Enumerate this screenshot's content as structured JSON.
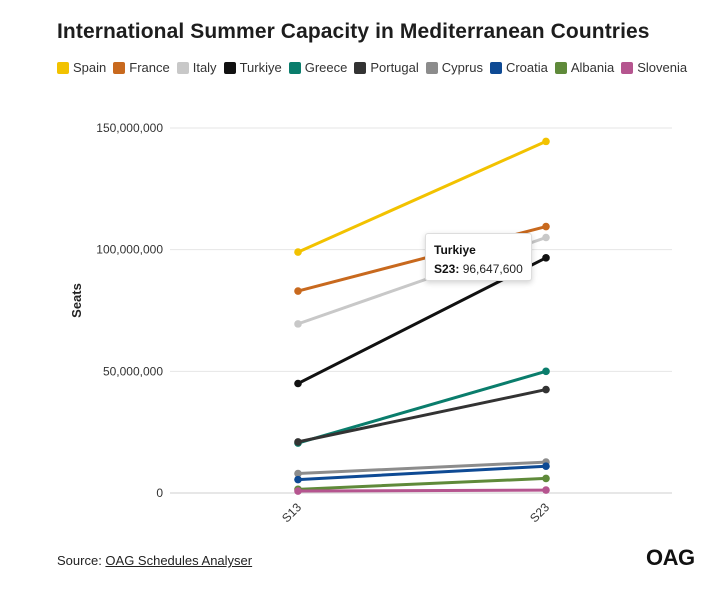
{
  "chart_data": {
    "type": "line",
    "title": "International Summer Capacity in Mediterranean Countries",
    "categories": [
      "S13",
      "S23"
    ],
    "ylabel": "Seats",
    "xlabel": "",
    "ylim": [
      0,
      150000000
    ],
    "yticks": [
      0,
      50000000,
      100000000,
      150000000
    ],
    "ytick_labels": [
      "0",
      "50,000,000",
      "100,000,000",
      "150,000,000"
    ],
    "grid": true,
    "legend_placement": "top",
    "series": [
      {
        "name": "Spain",
        "color": "#f2c200",
        "values": [
          99000000,
          144500000
        ]
      },
      {
        "name": "France",
        "color": "#c8691e",
        "values": [
          83000000,
          109500000
        ]
      },
      {
        "name": "Italy",
        "color": "#c8c8c8",
        "values": [
          69500000,
          105000000
        ]
      },
      {
        "name": "Turkiye",
        "color": "#111111",
        "values": [
          45000000,
          96647600
        ]
      },
      {
        "name": "Greece",
        "color": "#0a7d6c",
        "values": [
          20500000,
          50000000
        ]
      },
      {
        "name": "Portugal",
        "color": "#333333",
        "values": [
          21000000,
          42500000
        ]
      },
      {
        "name": "Cyprus",
        "color": "#8c8c8c",
        "values": [
          8000000,
          12700000
        ]
      },
      {
        "name": "Croatia",
        "color": "#0e4a94",
        "values": [
          5500000,
          11000000
        ]
      },
      {
        "name": "Albania",
        "color": "#5f8a3a",
        "values": [
          1500000,
          6000000
        ]
      },
      {
        "name": "Slovenia",
        "color": "#b5558f",
        "values": [
          800000,
          1200000
        ]
      }
    ],
    "tooltip": {
      "series": "Turkiye",
      "period_label": "S23:",
      "value_text": "96,647,600"
    }
  },
  "source": {
    "prefix": "Source: ",
    "link_text": "OAG Schedules Analyser"
  },
  "logo": {
    "text": "OAG"
  }
}
